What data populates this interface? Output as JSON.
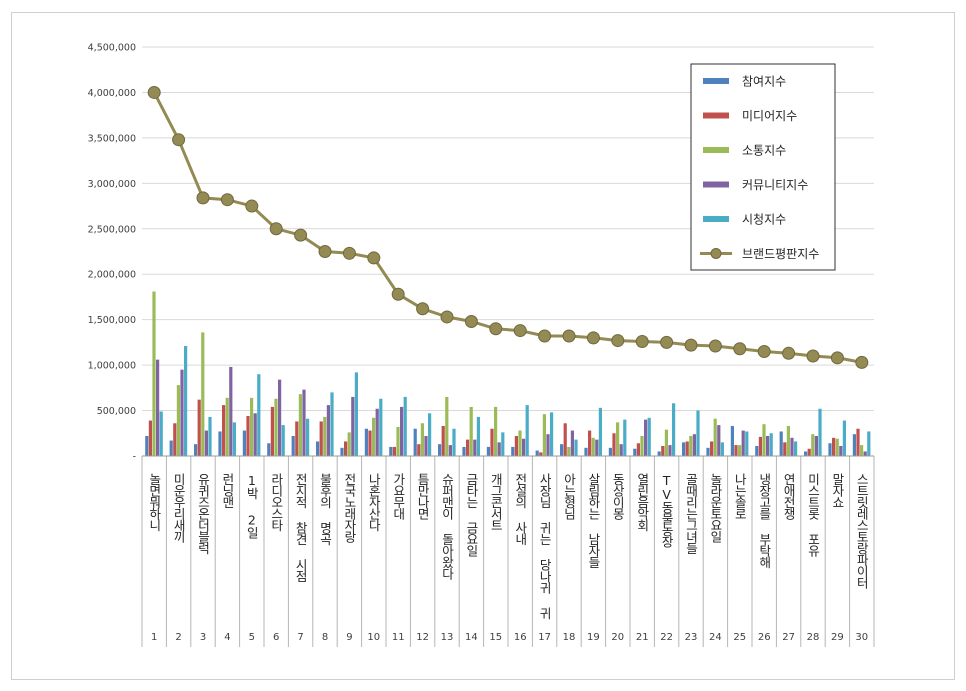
{
  "chart_data": {
    "type": "bar",
    "yticks": [
      "4,500,000",
      "4,000,000",
      "3,500,000",
      "3,000,000",
      "2,500,000",
      "2,000,000",
      "1,500,000",
      "1,000,000",
      "500,000",
      "-"
    ],
    "ylim": [
      0,
      4500000
    ],
    "grid": true,
    "legend_position": "top-right",
    "categories": [
      "놀면 뭐하니",
      "미운 우리 새끼",
      "유퀴즈 온 더 블럭",
      "런닝맨",
      "1박 2일",
      "라디오스타",
      "전지적 참견 시점",
      "불후의 명곡",
      "전국노래자랑",
      "나 혼자 산다",
      "가요무대",
      "틈만 나면",
      "슈퍼맨이 돌아왔다",
      "금타는 금요일",
      "개그콘서트",
      "전설의 사내",
      "사장님 귀는 당나귀 귀",
      "아는 형님",
      "살림하는 남자들",
      "동상이몽",
      "열린음악회",
      "TV 동물농장",
      "골 때리는 그녀들",
      "놀라운 토요일",
      "나는 솔로",
      "냉장고를 부탁해",
      "연애전쟁",
      "미스트롯 포유",
      "말자쇼",
      "스트릿 레스토랑 파이터"
    ],
    "category_labels": [
      "놀면뭐하니",
      "미운우리새끼",
      "유퀴즈온더블럭",
      "런닝맨",
      "1박 2일",
      "라디오스타",
      "전지적 참견 시점",
      "불후의 명곡",
      "전국노래자랑",
      "나혼자산다",
      "가요무대",
      "틈만나면",
      "슈퍼맨이 돌아왔다",
      "금타는 금요일",
      "개그콘서트",
      "전설의 사내",
      "사장님 귀는 당나귀 귀",
      "아는형님",
      "살림하는 남자들",
      "동상이몽",
      "열린음악회",
      "TV동물농장",
      "골때리는그녀들",
      "놀라운토요일",
      "나는솔로",
      "냉장고를 부탁해",
      "연애전쟁",
      "미스트롯 포유",
      "말자쇼",
      "스트릿레스토랑파이터"
    ],
    "ranks": [
      "1",
      "2",
      "3",
      "4",
      "5",
      "6",
      "7",
      "8",
      "9",
      "10",
      "11",
      "12",
      "13",
      "14",
      "15",
      "16",
      "17",
      "18",
      "19",
      "20",
      "21",
      "22",
      "23",
      "24",
      "25",
      "26",
      "27",
      "28",
      "29",
      "30"
    ],
    "series": [
      {
        "name": "참여지수",
        "color": "#4f81bd",
        "values": [
          220000,
          170000,
          130000,
          270000,
          280000,
          140000,
          220000,
          160000,
          90000,
          300000,
          100000,
          300000,
          130000,
          100000,
          100000,
          100000,
          60000,
          130000,
          90000,
          90000,
          80000,
          50000,
          150000,
          90000,
          330000,
          110000,
          270000,
          50000,
          140000,
          240000
        ]
      },
      {
        "name": "미디어지수",
        "color": "#c0504d",
        "values": [
          390000,
          360000,
          620000,
          560000,
          440000,
          540000,
          380000,
          380000,
          160000,
          280000,
          100000,
          130000,
          330000,
          180000,
          300000,
          220000,
          40000,
          360000,
          280000,
          250000,
          140000,
          110000,
          160000,
          160000,
          120000,
          210000,
          150000,
          80000,
          200000,
          300000
        ]
      },
      {
        "name": "소통지수",
        "color": "#9bbb59",
        "values": [
          1810000,
          780000,
          1360000,
          640000,
          640000,
          630000,
          680000,
          430000,
          260000,
          420000,
          320000,
          360000,
          650000,
          540000,
          540000,
          280000,
          460000,
          100000,
          200000,
          370000,
          220000,
          290000,
          220000,
          410000,
          120000,
          350000,
          330000,
          240000,
          190000,
          120000
        ]
      },
      {
        "name": "커뮤니티지수",
        "color": "#8064a2",
        "values": [
          1060000,
          950000,
          280000,
          980000,
          470000,
          840000,
          730000,
          560000,
          650000,
          520000,
          540000,
          220000,
          120000,
          180000,
          150000,
          190000,
          240000,
          280000,
          180000,
          130000,
          400000,
          120000,
          240000,
          340000,
          280000,
          220000,
          200000,
          220000,
          110000,
          50000
        ]
      },
      {
        "name": "시청지수",
        "color": "#4bacc6",
        "values": [
          490000,
          1210000,
          430000,
          370000,
          900000,
          340000,
          410000,
          700000,
          920000,
          630000,
          650000,
          470000,
          300000,
          430000,
          260000,
          560000,
          480000,
          180000,
          530000,
          400000,
          420000,
          580000,
          500000,
          150000,
          270000,
          250000,
          160000,
          520000,
          390000,
          270000
        ]
      },
      {
        "name": "브랜드평판지수",
        "type": "line",
        "color": "#948a54",
        "values": [
          4000000,
          3480000,
          2840000,
          2820000,
          2750000,
          2500000,
          2430000,
          2250000,
          2230000,
          2180000,
          1780000,
          1620000,
          1530000,
          1480000,
          1400000,
          1380000,
          1320000,
          1320000,
          1300000,
          1270000,
          1260000,
          1250000,
          1220000,
          1210000,
          1180000,
          1150000,
          1130000,
          1100000,
          1080000,
          1030000
        ]
      }
    ]
  }
}
